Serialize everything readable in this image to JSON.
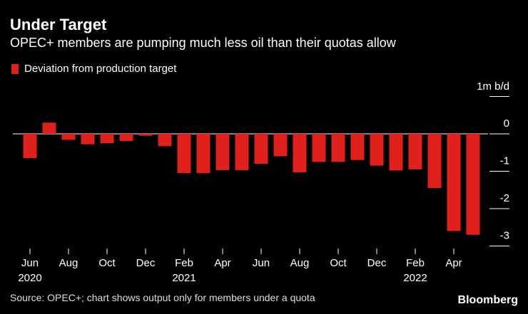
{
  "colors": {
    "background": "#000000",
    "bar": "#e0201b",
    "text": "#ffffff",
    "grid": "#ffffff"
  },
  "title": "Under Target",
  "subtitle": "OPEC+ members are pumping much less oil than their quotas allow",
  "legend_label": "Deviation from production target",
  "source": "Source: OPEC+; chart shows output only for members under a quota",
  "brand": "Bloomberg",
  "chart_data": {
    "type": "bar",
    "title": "Under Target",
    "xlabel": "",
    "ylabel": "1m b/d",
    "unit_label": "1m b/d",
    "ylim": [
      -3.3,
      0.55
    ],
    "yticks": [
      0,
      -1,
      -2,
      -3
    ],
    "categories": [
      "Jun 2020",
      "Jul 2020",
      "Aug 2020",
      "Sep 2020",
      "Oct 2020",
      "Nov 2020",
      "Dec 2020",
      "Jan 2021",
      "Feb 2021",
      "Mar 2021",
      "Apr 2021",
      "May 2021",
      "Jun 2021",
      "Jul 2021",
      "Aug 2021",
      "Sep 2021",
      "Oct 2021",
      "Nov 2021",
      "Dec 2021",
      "Jan 2022",
      "Feb 2022",
      "Mar 2022",
      "Apr 2022",
      "May 2022"
    ],
    "series": [
      {
        "name": "Deviation from production target",
        "values": [
          -0.65,
          0.3,
          -0.16,
          -0.28,
          -0.25,
          -0.19,
          -0.05,
          -0.33,
          -1.05,
          -1.05,
          -0.97,
          -0.97,
          -0.8,
          -0.6,
          -1.03,
          -0.75,
          -0.75,
          -0.7,
          -0.85,
          -0.98,
          -0.95,
          -1.45,
          -2.6,
          -2.7
        ]
      }
    ],
    "x_tick_labels": [
      {
        "index": 0,
        "month": "Jun",
        "year": "2020"
      },
      {
        "index": 2,
        "month": "Aug",
        "year": ""
      },
      {
        "index": 4,
        "month": "Oct",
        "year": ""
      },
      {
        "index": 6,
        "month": "Dec",
        "year": ""
      },
      {
        "index": 8,
        "month": "Feb",
        "year": "2021"
      },
      {
        "index": 10,
        "month": "Apr",
        "year": ""
      },
      {
        "index": 12,
        "month": "Jun",
        "year": ""
      },
      {
        "index": 14,
        "month": "Aug",
        "year": ""
      },
      {
        "index": 16,
        "month": "Oct",
        "year": ""
      },
      {
        "index": 18,
        "month": "Dec",
        "year": ""
      },
      {
        "index": 20,
        "month": "Feb",
        "year": "2022"
      },
      {
        "index": 22,
        "month": "Apr",
        "year": ""
      }
    ],
    "legend_position": "top-left",
    "grid": false
  }
}
